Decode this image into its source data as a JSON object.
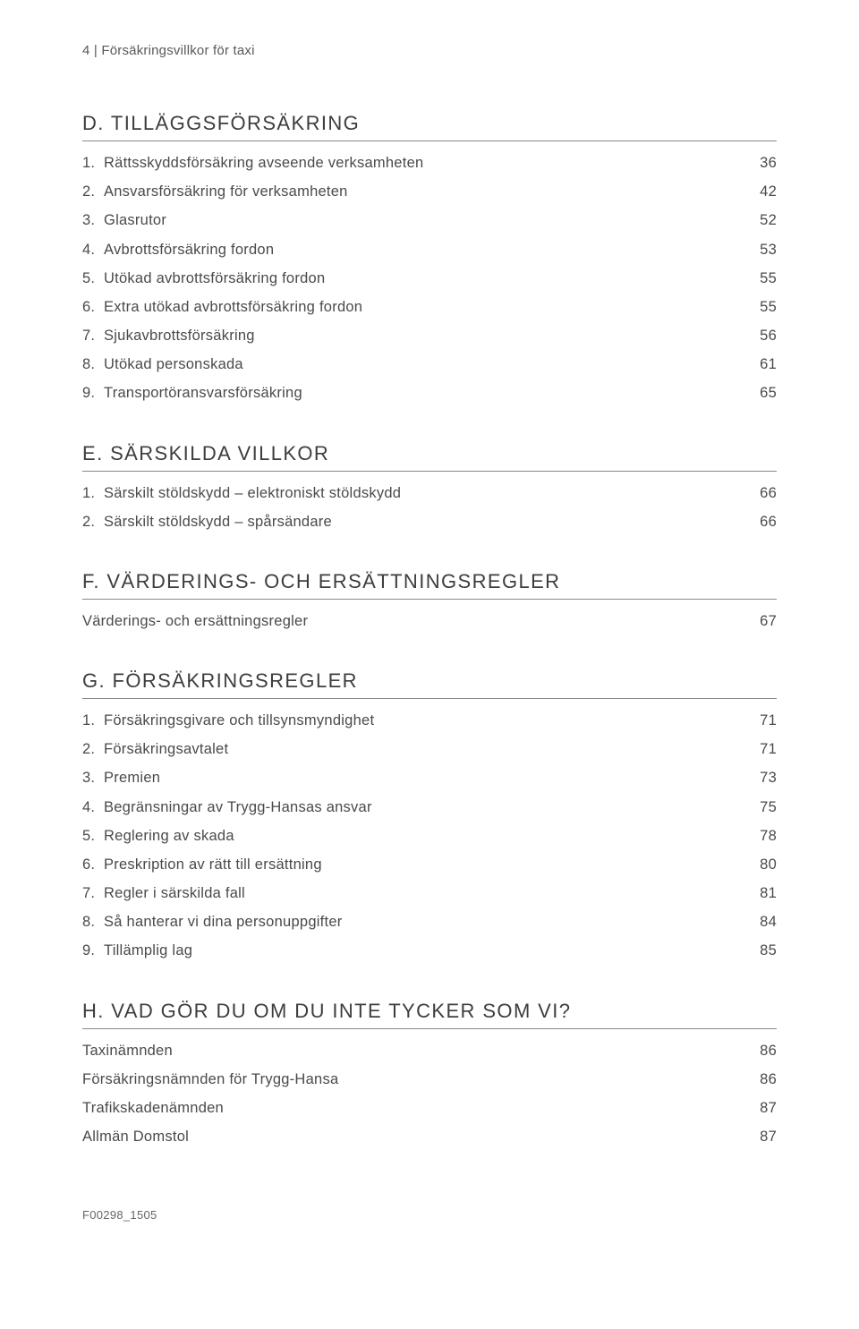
{
  "header": "4 | Försäkringsvillkor för taxi",
  "sections": [
    {
      "title": "D. TILLÄGGSFÖRSÄKRING",
      "items": [
        {
          "num": "1.",
          "label": "Rättsskyddsförsäkring avseende verksamheten",
          "page": "36"
        },
        {
          "num": "2.",
          "label": "Ansvarsförsäkring för verksamheten",
          "page": "42"
        },
        {
          "num": "3.",
          "label": "Glasrutor",
          "page": "52"
        },
        {
          "num": "4.",
          "label": "Avbrottsförsäkring fordon",
          "page": "53"
        },
        {
          "num": "5.",
          "label": "Utökad avbrottsförsäkring fordon",
          "page": "55"
        },
        {
          "num": "6.",
          "label": "Extra utökad avbrottsförsäkring fordon",
          "page": "55"
        },
        {
          "num": "7.",
          "label": "Sjukavbrottsförsäkring",
          "page": "56"
        },
        {
          "num": "8.",
          "label": "Utökad personskada",
          "page": "61"
        },
        {
          "num": "9.",
          "label": "Transportöransvarsförsäkring",
          "page": "65"
        }
      ]
    },
    {
      "title": "E. SÄRSKILDA VILLKOR",
      "items": [
        {
          "num": "1.",
          "label": "Särskilt stöldskydd – elektroniskt stöldskydd",
          "page": "66"
        },
        {
          "num": "2.",
          "label": "Särskilt stöldskydd – spårsändare",
          "page": "66"
        }
      ]
    },
    {
      "title": "F. VÄRDERINGS- OCH ERSÄTTNINGSREGLER",
      "items": [
        {
          "num": "",
          "label": "Värderings- och ersättningsregler",
          "page": "67"
        }
      ]
    },
    {
      "title": "G. FÖRSÄKRINGSREGLER",
      "items": [
        {
          "num": "1.",
          "label": "Försäkringsgivare och tillsynsmyndighet",
          "page": "71"
        },
        {
          "num": "2.",
          "label": "Försäkringsavtalet",
          "page": "71"
        },
        {
          "num": "3.",
          "label": "Premien",
          "page": "73"
        },
        {
          "num": "4.",
          "label": "Begränsningar av Trygg-Hansas ansvar",
          "page": "75"
        },
        {
          "num": "5.",
          "label": "Reglering av skada",
          "page": "78"
        },
        {
          "num": "6.",
          "label": "Preskription av rätt till ersättning",
          "page": "80"
        },
        {
          "num": "7.",
          "label": "Regler i särskilda fall",
          "page": "81"
        },
        {
          "num": "8.",
          "label": "Så hanterar vi dina personuppgifter",
          "page": "84"
        },
        {
          "num": "9.",
          "label": "Tillämplig lag",
          "page": "85"
        }
      ]
    },
    {
      "title": "H. VAD GÖR DU OM DU INTE TYCKER SOM VI?",
      "items": [
        {
          "num": "",
          "label": "Taxinämnden",
          "page": "86"
        },
        {
          "num": "",
          "label": "Försäkringsnämnden för Trygg-Hansa",
          "page": "86"
        },
        {
          "num": "",
          "label": "Trafikskadenämnden",
          "page": "87"
        },
        {
          "num": "",
          "label": "Allmän Domstol",
          "page": "87"
        }
      ]
    }
  ],
  "footer": "F00298_1505"
}
